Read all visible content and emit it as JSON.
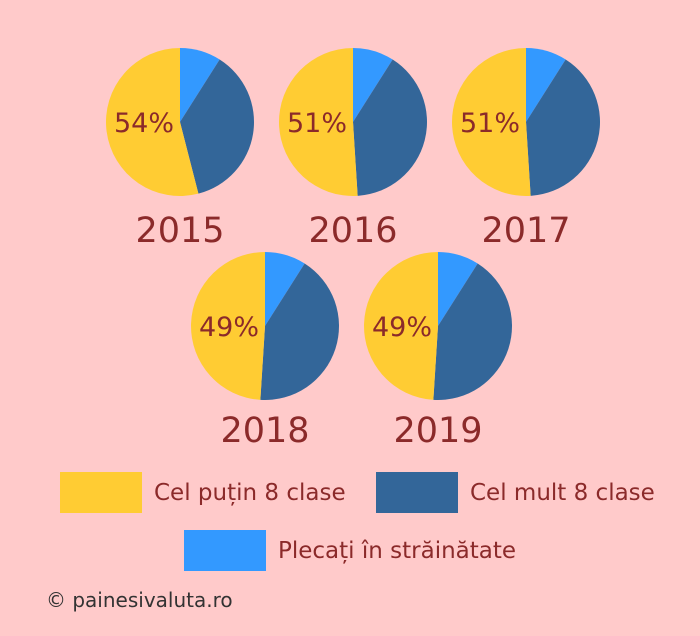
{
  "chart_data": {
    "type": "pie",
    "series_names": [
      "Cel puțin 8 clase",
      "Cel mult 8 clase",
      "Plecați în străinătate"
    ],
    "colors": [
      "#FFCC33",
      "#336699",
      "#3399FF"
    ],
    "pies": [
      {
        "year": "2015",
        "label": "54%",
        "values": [
          54,
          37,
          9
        ]
      },
      {
        "year": "2016",
        "label": "51%",
        "values": [
          51,
          40,
          9
        ]
      },
      {
        "year": "2017",
        "label": "51%",
        "values": [
          51,
          40,
          9
        ]
      },
      {
        "year": "2018",
        "label": "49%",
        "values": [
          49,
          42,
          9
        ]
      },
      {
        "year": "2019",
        "label": "49%",
        "values": [
          49,
          42,
          9
        ]
      }
    ]
  },
  "legend": [
    {
      "label": "Cel puțin 8 clase",
      "color": "#FFCC33"
    },
    {
      "label": "Cel mult 8 clase",
      "color": "#336699"
    },
    {
      "label": "Plecați în străinătate",
      "color": "#3399FF"
    }
  ],
  "copyright": "© painesivaluta.ro"
}
